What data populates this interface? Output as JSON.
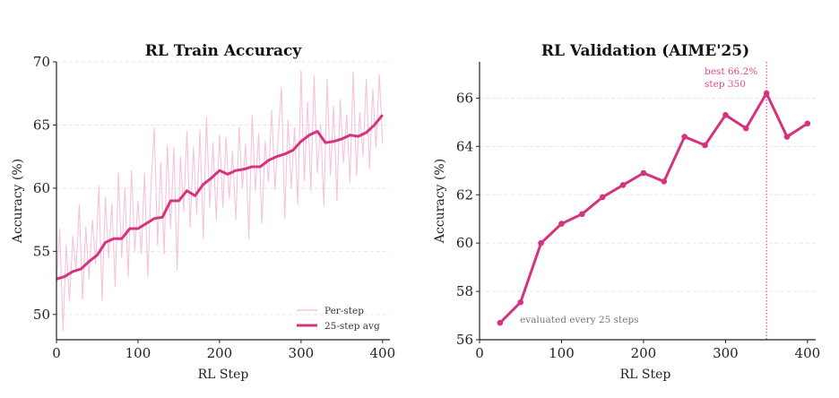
{
  "colors": {
    "accent": "#d6337f",
    "per_step": "#f4b9d2",
    "annotation": "#e0488f",
    "note": "#777777"
  },
  "chart_data": [
    {
      "type": "line",
      "title": "RL Train Accuracy",
      "xlabel": "RL Step",
      "ylabel": "Accuracy (%)",
      "xlim": [
        0,
        409
      ],
      "ylim": [
        48,
        70
      ],
      "xticks": [
        0,
        100,
        200,
        300,
        400
      ],
      "yticks": [
        50,
        55,
        60,
        65,
        70
      ],
      "grid": "horizontal dashed",
      "legend": "bottom-right",
      "series": [
        {
          "name": "Per-step",
          "x_step": 4,
          "values": [
            52.5,
            56.8,
            48.7,
            55.5,
            51.0,
            56.2,
            53.5,
            58.7,
            51.2,
            56.9,
            52.8,
            57.5,
            54.0,
            60.2,
            51.1,
            59.3,
            54.5,
            58.8,
            52.2,
            61.2,
            54.5,
            60.0,
            53.0,
            61.4,
            55.0,
            59.0,
            54.8,
            61.2,
            53.0,
            60.3,
            64.8,
            55.5,
            62.0,
            54.8,
            63.4,
            56.8,
            63.2,
            53.5,
            62.5,
            58.2,
            64.5,
            56.9,
            63.2,
            58.0,
            64.6,
            56.0,
            65.6,
            58.5,
            63.6,
            57.5,
            64.2,
            58.5,
            64.0,
            59.2,
            62.9,
            57.5,
            64.8,
            60.0,
            63.5,
            56.0,
            65.8,
            59.8,
            64.3,
            57.2,
            63.7,
            60.5,
            66.2,
            59.9,
            64.0,
            68.0,
            57.6,
            65.4,
            60.0,
            64.8,
            58.7,
            69.3,
            60.6,
            66.8,
            59.8,
            68.9,
            61.2,
            65.0,
            58.6,
            68.6,
            61.0,
            66.5,
            59.0,
            67.0,
            62.0,
            65.8,
            60.5,
            69.2,
            61.0,
            66.0,
            62.5,
            68.6,
            61.5,
            67.8,
            63.2,
            69.0,
            63.5
          ]
        },
        {
          "name": "25-step avg",
          "x_step": 10,
          "values": [
            52.8,
            53.0,
            53.4,
            53.6,
            54.2,
            54.7,
            55.7,
            56.0,
            56.0,
            56.8,
            56.8,
            57.2,
            57.6,
            57.7,
            59.0,
            59.0,
            59.8,
            59.4,
            60.3,
            60.8,
            61.4,
            61.1,
            61.4,
            61.5,
            61.7,
            61.7,
            62.2,
            62.5,
            62.7,
            63.0,
            63.7,
            64.2,
            64.5,
            63.6,
            63.7,
            63.9,
            64.2,
            64.1,
            64.4,
            65.0,
            65.8
          ]
        }
      ]
    },
    {
      "type": "line",
      "title": "RL Validation (AIME'25)",
      "xlabel": "RL Step",
      "ylabel": "Accuracy (%)",
      "xlim": [
        0,
        410
      ],
      "ylim": [
        56,
        67.5
      ],
      "xticks": [
        0,
        100,
        200,
        300,
        400
      ],
      "yticks": [
        56,
        58,
        60,
        62,
        64,
        66
      ],
      "grid": "horizontal dashed",
      "x": [
        25,
        50,
        75,
        100,
        125,
        150,
        175,
        200,
        225,
        250,
        275,
        300,
        325,
        350,
        375,
        400
      ],
      "values": [
        56.7,
        57.55,
        60.0,
        60.8,
        61.2,
        61.9,
        62.4,
        62.9,
        62.55,
        64.4,
        64.05,
        65.3,
        64.75,
        66.2,
        64.4,
        64.95
      ],
      "best_marker_x": 350,
      "annotations": {
        "best_line1": "best 66.2%",
        "best_line2": "step 350",
        "note": "evaluated every 25 steps"
      }
    }
  ]
}
